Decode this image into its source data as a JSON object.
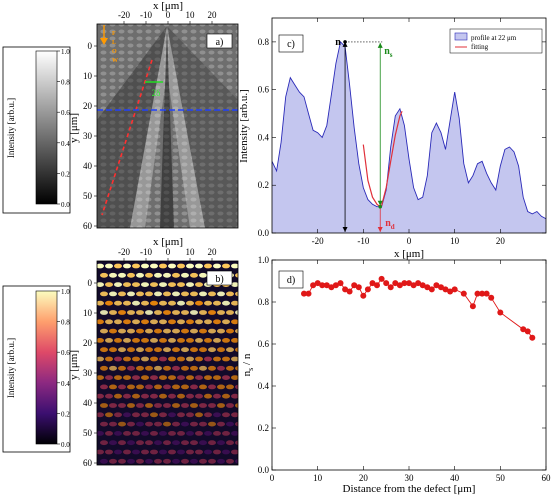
{
  "colorbars": [
    {
      "id": "gray",
      "label": "Intensity [arb.u.]",
      "ticks": [
        "1.0",
        "0.8",
        "0.6",
        "0.4",
        "0.2",
        "0.0"
      ]
    },
    {
      "id": "inferno",
      "label": "Intensity [arb.u.]",
      "ticks": [
        "1.0",
        "0.8",
        "0.6",
        "0.4",
        "0.2",
        "0.0"
      ]
    }
  ],
  "panel_a": {
    "tag": "a)",
    "xlabel": "x [μm]",
    "ylabel": "y [μm]",
    "xticks": [
      "-20",
      "-10",
      "0",
      "10",
      "20"
    ],
    "yticks": [
      "0",
      "10",
      "20",
      "30",
      "40",
      "50",
      "60"
    ],
    "flow_label": "FLOW",
    "period_label": "2δ"
  },
  "panel_b": {
    "tag": "b)",
    "xlabel": "x [μm]",
    "ylabel": "y [μm]",
    "xticks": [
      "-20",
      "-10",
      "0",
      "10",
      "20"
    ],
    "yticks": [
      "0",
      "10",
      "20",
      "30",
      "40",
      "50",
      "60"
    ]
  },
  "chart_data": [
    {
      "type": "area",
      "panel": "c)",
      "xlabel": "x [μm]",
      "ylabel": "Intensity [arb.u.]",
      "xlim": [
        -30,
        30
      ],
      "ylim": [
        0.0,
        0.9
      ],
      "xticks": [
        -20,
        -10,
        0,
        10,
        20
      ],
      "yticks": [
        0.0,
        0.2,
        0.4,
        0.6,
        0.8
      ],
      "legend_position": "top-right",
      "annotations": {
        "n": "n",
        "ns": "n",
        "ns_sub": "s",
        "nd": "n",
        "nd_sub": "d"
      },
      "series": [
        {
          "name": "profile at 22 μm",
          "color": "#2a2ab8",
          "fill": "#c4c6ef",
          "x": [
            -30,
            -29,
            -28,
            -27,
            -26,
            -25,
            -24,
            -23,
            -22,
            -21,
            -20,
            -19,
            -18,
            -17,
            -16,
            -15,
            -14,
            -13,
            -12,
            -11,
            -10,
            -9,
            -8,
            -7,
            -6,
            -5,
            -4,
            -3,
            -2,
            -1,
            0,
            1,
            2,
            3,
            4,
            5,
            6,
            7,
            8,
            9,
            10,
            11,
            12,
            13,
            14,
            15,
            16,
            17,
            18,
            19,
            20,
            21,
            22,
            23,
            24,
            25,
            26,
            27,
            28,
            29,
            30
          ],
          "y": [
            0.3,
            0.26,
            0.38,
            0.57,
            0.65,
            0.62,
            0.59,
            0.57,
            0.5,
            0.43,
            0.42,
            0.4,
            0.45,
            0.58,
            0.71,
            0.8,
            0.78,
            0.62,
            0.44,
            0.29,
            0.19,
            0.14,
            0.12,
            0.11,
            0.11,
            0.18,
            0.36,
            0.49,
            0.52,
            0.45,
            0.31,
            0.19,
            0.14,
            0.15,
            0.24,
            0.42,
            0.46,
            0.42,
            0.35,
            0.47,
            0.59,
            0.48,
            0.29,
            0.21,
            0.24,
            0.29,
            0.3,
            0.25,
            0.21,
            0.18,
            0.28,
            0.35,
            0.36,
            0.34,
            0.28,
            0.15,
            0.09,
            0.08,
            0.09,
            0.07,
            0.06
          ]
        },
        {
          "name": "fitting",
          "color": "#e0303a",
          "x": [
            -10,
            -9,
            -8,
            -7,
            -6.3,
            -6,
            -5,
            -4,
            -3,
            -2,
            -1.5
          ],
          "y": [
            0.37,
            0.22,
            0.15,
            0.12,
            0.11,
            0.115,
            0.19,
            0.3,
            0.41,
            0.49,
            0.51
          ]
        }
      ]
    },
    {
      "type": "line",
      "panel": "d)",
      "xlabel": "Distance from the defect [μm]",
      "ylabel": "n_s / n",
      "ylabel_main": "n",
      "ylabel_sub": "s",
      "ylabel_tail": " / n",
      "xlim": [
        0,
        60
      ],
      "ylim": [
        0.0,
        1.0
      ],
      "xticks": [
        0,
        10,
        20,
        30,
        40,
        50,
        60
      ],
      "yticks": [
        0.0,
        0.2,
        0.4,
        0.6,
        0.8,
        1.0
      ],
      "series": [
        {
          "name": "",
          "color": "#e01818",
          "x": [
            7,
            8,
            9,
            10,
            11,
            12,
            13,
            14,
            15,
            16,
            17,
            18,
            19,
            20,
            21,
            22,
            23,
            24,
            25,
            26,
            27,
            28,
            29,
            30,
            31,
            32,
            33,
            34,
            35,
            36,
            37,
            38,
            39,
            40,
            42,
            44,
            45,
            46,
            47,
            48,
            50,
            55,
            56,
            57
          ],
          "y": [
            0.84,
            0.84,
            0.88,
            0.89,
            0.88,
            0.88,
            0.87,
            0.88,
            0.89,
            0.86,
            0.85,
            0.88,
            0.87,
            0.83,
            0.86,
            0.89,
            0.88,
            0.91,
            0.89,
            0.87,
            0.89,
            0.88,
            0.89,
            0.89,
            0.88,
            0.89,
            0.88,
            0.87,
            0.86,
            0.88,
            0.87,
            0.86,
            0.85,
            0.86,
            0.84,
            0.78,
            0.84,
            0.84,
            0.84,
            0.82,
            0.75,
            0.67,
            0.66,
            0.63
          ]
        }
      ]
    }
  ]
}
